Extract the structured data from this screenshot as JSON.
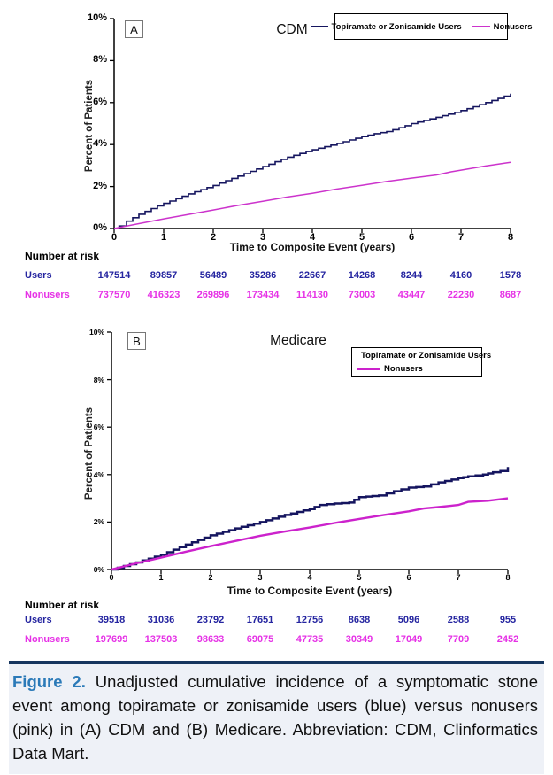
{
  "caption": {
    "label": "Figure 2.",
    "body": " Unadjusted cumulative incidence of a symptomatic stone event among topiramate or zonisamide users (blue) versus nonusers (pink) in (A) CDM and (B) Medicare. Abbreviation: CDM, Clinformatics Data Mart.",
    "label_color": "#2b7ab8",
    "rule_color": "#16365f",
    "background_color": "#eef1f7"
  },
  "chart_data": [
    {
      "type": "line",
      "panel_label": "A",
      "title": "CDM",
      "xlabel": "Time to Composite Event (years)",
      "ylabel": "Percent of Patients",
      "xlim": [
        0,
        8
      ],
      "ylim": [
        0,
        10
      ],
      "legend_position": "top-right-horizontal",
      "xticks": {
        "values": [
          0,
          1,
          2,
          3,
          4,
          5,
          6,
          7,
          8
        ],
        "labels": [
          "0",
          "1",
          "2",
          "3",
          "4",
          "5",
          "6",
          "7",
          "8"
        ]
      },
      "yticks": {
        "values": [
          0,
          2,
          4,
          6,
          8,
          10
        ],
        "labels": [
          "0%",
          "2%",
          "4%",
          "6%",
          "8%",
          "10%"
        ]
      },
      "series": [
        {
          "name": "Topiramate or Zonisamide Users",
          "color": "#15155f",
          "step": true,
          "points": [
            [
              0,
              0
            ],
            [
              0.1,
              0.12
            ],
            [
              0.25,
              0.35
            ],
            [
              0.5,
              0.68
            ],
            [
              0.75,
              0.95
            ],
            [
              1,
              1.2
            ],
            [
              1.25,
              1.42
            ],
            [
              1.5,
              1.65
            ],
            [
              1.75,
              1.85
            ],
            [
              2,
              2.05
            ],
            [
              2.25,
              2.28
            ],
            [
              2.5,
              2.5
            ],
            [
              2.75,
              2.72
            ],
            [
              3,
              2.95
            ],
            [
              3.25,
              3.18
            ],
            [
              3.5,
              3.4
            ],
            [
              3.75,
              3.58
            ],
            [
              4,
              3.75
            ],
            [
              4.25,
              3.9
            ],
            [
              4.5,
              4.05
            ],
            [
              4.75,
              4.22
            ],
            [
              5,
              4.38
            ],
            [
              5.25,
              4.52
            ],
            [
              5.5,
              4.62
            ],
            [
              5.75,
              4.8
            ],
            [
              6,
              5.0
            ],
            [
              6.25,
              5.15
            ],
            [
              6.5,
              5.3
            ],
            [
              6.75,
              5.45
            ],
            [
              7,
              5.62
            ],
            [
              7.25,
              5.8
            ],
            [
              7.5,
              6.0
            ],
            [
              7.75,
              6.2
            ],
            [
              8,
              6.42
            ]
          ]
        },
        {
          "name": "Nonusers",
          "color": "#cc33cc",
          "step": false,
          "points": [
            [
              0,
              0
            ],
            [
              0.5,
              0.23
            ],
            [
              1,
              0.46
            ],
            [
              1.5,
              0.67
            ],
            [
              2,
              0.88
            ],
            [
              2.5,
              1.1
            ],
            [
              3,
              1.3
            ],
            [
              3.5,
              1.5
            ],
            [
              4,
              1.68
            ],
            [
              4.5,
              1.88
            ],
            [
              5,
              2.06
            ],
            [
              5.5,
              2.24
            ],
            [
              6,
              2.4
            ],
            [
              6.5,
              2.55
            ],
            [
              6.8,
              2.7
            ],
            [
              7,
              2.78
            ],
            [
              7.5,
              2.98
            ],
            [
              8,
              3.15
            ]
          ]
        }
      ],
      "number_at_risk": {
        "heading": "Number at risk",
        "rows": [
          {
            "label": "Users",
            "color": "#2525a0",
            "values": [
              "147514",
              "89857",
              "56489",
              "35286",
              "22667",
              "14268",
              "8244",
              "4160",
              "1578"
            ]
          },
          {
            "label": "Nonusers",
            "color": "#e632e6",
            "values": [
              "737570",
              "416323",
              "269896",
              "173434",
              "114130",
              "73003",
              "43447",
              "22230",
              "8687"
            ]
          }
        ]
      }
    },
    {
      "type": "line",
      "panel_label": "B",
      "title": "Medicare",
      "xlabel": "Time to Composite Event (years)",
      "ylabel": "Percent of Patients",
      "xlim": [
        0,
        8
      ],
      "ylim": [
        0,
        10
      ],
      "legend_position": "top-right-vertical",
      "xticks": {
        "values": [
          0,
          1,
          2,
          3,
          4,
          5,
          6,
          7,
          8
        ],
        "labels": [
          "0",
          "1",
          "2",
          "3",
          "4",
          "5",
          "6",
          "7",
          "8"
        ]
      },
      "yticks": {
        "values": [
          0,
          2,
          4,
          6,
          8,
          10
        ],
        "labels": [
          "0%",
          "2%",
          "4%",
          "6%",
          "8%",
          "10%"
        ]
      },
      "series": [
        {
          "name": "Topiramate or Zonisamide Users",
          "color": "#15155f",
          "step": true,
          "points": [
            [
              0,
              0
            ],
            [
              0.5,
              0.3
            ],
            [
              1,
              0.62
            ],
            [
              1.5,
              1.05
            ],
            [
              2,
              1.44
            ],
            [
              2.5,
              1.73
            ],
            [
              3,
              2.0
            ],
            [
              3.5,
              2.3
            ],
            [
              4,
              2.55
            ],
            [
              4.2,
              2.72
            ],
            [
              4.5,
              2.78
            ],
            [
              4.8,
              2.82
            ],
            [
              5,
              3.05
            ],
            [
              5.4,
              3.12
            ],
            [
              5.7,
              3.3
            ],
            [
              6,
              3.45
            ],
            [
              6.3,
              3.5
            ],
            [
              6.6,
              3.67
            ],
            [
              7,
              3.85
            ],
            [
              7.2,
              3.93
            ],
            [
              7.5,
              4.0
            ],
            [
              7.7,
              4.1
            ],
            [
              7.85,
              4.15
            ],
            [
              8,
              4.32
            ]
          ]
        },
        {
          "name": "Nonusers",
          "color": "#cc22cc",
          "step": false,
          "points": [
            [
              0,
              0
            ],
            [
              0.5,
              0.26
            ],
            [
              1,
              0.5
            ],
            [
              1.5,
              0.75
            ],
            [
              2,
              0.98
            ],
            [
              2.5,
              1.2
            ],
            [
              3,
              1.42
            ],
            [
              3.5,
              1.6
            ],
            [
              4,
              1.77
            ],
            [
              4.5,
              1.96
            ],
            [
              5,
              2.13
            ],
            [
              5.5,
              2.3
            ],
            [
              6,
              2.45
            ],
            [
              6.3,
              2.57
            ],
            [
              6.6,
              2.63
            ],
            [
              7,
              2.72
            ],
            [
              7.2,
              2.85
            ],
            [
              7.6,
              2.9
            ],
            [
              8,
              3.0
            ]
          ]
        }
      ],
      "number_at_risk": {
        "heading": "Number at risk",
        "rows": [
          {
            "label": "Users",
            "color": "#2525a0",
            "values": [
              "39518",
              "31036",
              "23792",
              "17651",
              "12756",
              "8638",
              "5096",
              "2588",
              "955"
            ]
          },
          {
            "label": "Nonusers",
            "color": "#e632e6",
            "values": [
              "197699",
              "137503",
              "98633",
              "69075",
              "47735",
              "30349",
              "17049",
              "7709",
              "2452"
            ]
          }
        ]
      }
    }
  ]
}
